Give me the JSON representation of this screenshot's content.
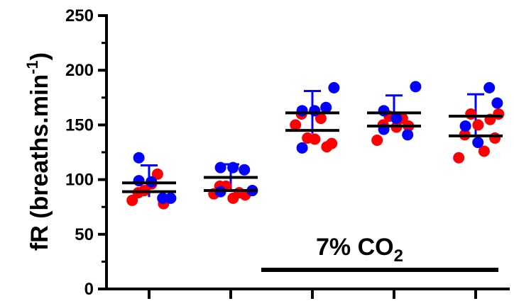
{
  "chart_data": {
    "type": "scatter",
    "ylabel_main": "fR (breaths.min",
    "ylabel_sup": "-1",
    "ylabel_close": ")",
    "ylim": [
      0,
      250
    ],
    "yticks": [
      0,
      50,
      100,
      150,
      200,
      250
    ],
    "grid": false,
    "legend": "none",
    "colors": {
      "red": "#ff0000",
      "blue": "#0000ff",
      "black": "#000000"
    },
    "groups": [
      {
        "red": [
          81,
          88,
          90,
          96,
          105,
          78
        ],
        "blue": [
          120,
          98,
          83,
          83,
          99
        ],
        "mean_lines": [
          97,
          89
        ],
        "blue_errbar": [
          84,
          113
        ]
      },
      {
        "red": [
          87,
          94,
          94,
          83,
          88,
          86
        ],
        "blue": [
          111,
          111,
          109,
          90,
          89
        ],
        "mean_lines": [
          102,
          90
        ],
        "blue_errbar": [
          90,
          114
        ]
      },
      {
        "red": [
          150,
          160,
          138,
          137,
          156,
          130,
          133
        ],
        "blue": [
          129,
          163,
          166,
          184,
          163
        ],
        "mean_lines": [
          161,
          145
        ],
        "blue_errbar": [
          142,
          181
        ]
      },
      {
        "red": [
          136,
          150,
          158,
          148,
          156,
          149
        ],
        "blue": [
          163,
          156,
          141,
          185,
          146
        ],
        "mean_lines": [
          161,
          149
        ],
        "blue_errbar": [
          145,
          177
        ]
      },
      {
        "red": [
          120,
          141,
          160,
          150,
          126,
          155,
          138,
          160
        ],
        "blue": [
          149,
          134,
          184,
          170
        ],
        "mean_lines": [
          158,
          140
        ],
        "blue_errbar": [
          140,
          178
        ]
      }
    ],
    "annotation": {
      "text_main": "7% CO",
      "text_sub": "2",
      "bar_from_group": 2,
      "bar_to_group": 4
    }
  }
}
